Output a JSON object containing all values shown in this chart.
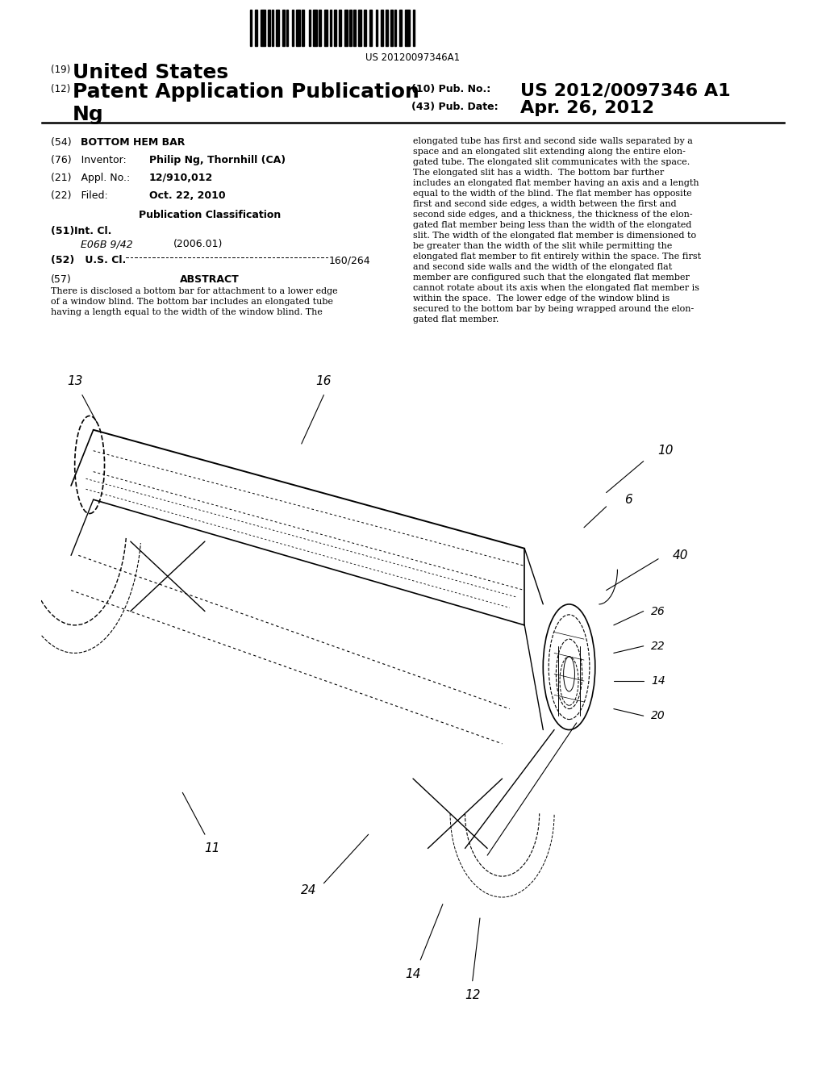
{
  "barcode_text": "US 20120097346A1",
  "header_19": "(19)",
  "header_19_text": "United States",
  "header_12": "(12)",
  "header_12_text": "Patent Application Publication",
  "header_ng": "Ng",
  "header_10": "(10) Pub. No.:",
  "header_10_val": "US 2012/0097346 A1",
  "header_43": "(43) Pub. Date:",
  "header_43_val": "Apr. 26, 2012",
  "label_54": "(54)",
  "label_54_text": "BOTTOM HEM BAR",
  "label_76": "(76)",
  "label_76a": "Inventor:",
  "label_76b": "Philip Ng, Thornhill (CA)",
  "label_21": "(21)",
  "label_21a": "Appl. No.:",
  "label_21b": "12/910,012",
  "label_22": "(22)",
  "label_22a": "Filed:",
  "label_22b": "Oct. 22, 2010",
  "pub_class_title": "Publication Classification",
  "label_51": "(51)",
  "label_51a": "Int. Cl.",
  "label_51b": "E06B 9/42",
  "label_51c": "(2006.01)",
  "label_52": "(52)",
  "label_52a": "U.S. Cl.",
  "label_52b": "160/264",
  "label_57": "(57)",
  "label_57_title": "ABSTRACT",
  "abstract_left": "There is disclosed a bottom bar for attachment to a lower edge of a window blind. The bottom bar includes an elongated tube having a length equal to the width of the window blind. The",
  "abstract_right": "elongated tube has first and second side walls separated by a space and an elongated slit extending along the entire elongated tube. The elongated slit communicates with the space. The elongated slit has a width. The bottom bar further includes an elongated flat member having an axis and a length equal to the width of the blind. The flat member has opposite first and second side edges, a width between the first and second side edges, and a thickness, the thickness of the elongated flat member being less than the width of the elongated slit. The width of the elongated flat member is dimensioned to be greater than the width of the slit while permitting the elongated flat member to fit entirely within the space. The first and second side walls and the width of the elongated flat member are configured such that the elongated flat member cannot rotate about its axis when the elongated flat member is within the space. The lower edge of the window blind is secured to the bottom bar by being wrapped around the elongated flat member.",
  "bg": "#ffffff"
}
